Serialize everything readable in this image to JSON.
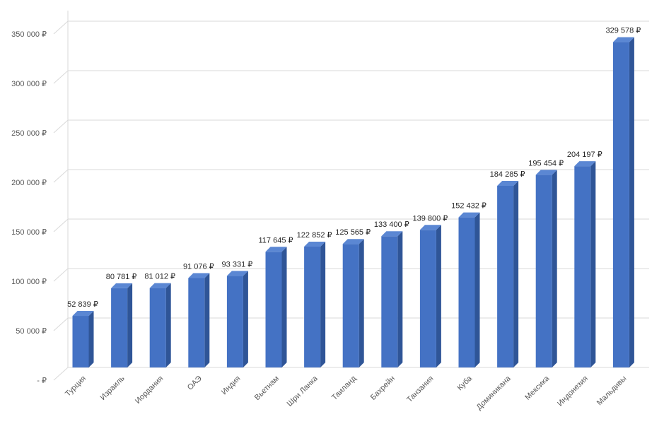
{
  "chart_data": {
    "type": "bar",
    "title": "",
    "xlabel": "",
    "ylabel": "",
    "ylim": [
      0,
      350000
    ],
    "yticks": [
      0,
      50000,
      100000,
      150000,
      200000,
      250000,
      300000,
      350000
    ],
    "ytick_labels": [
      "-  ₽",
      "50 000 ₽",
      "100 000 ₽",
      "150 000 ₽",
      "200 000 ₽",
      "250 000 ₽",
      "300 000 ₽",
      "350 000 ₽"
    ],
    "grid": true,
    "legend": "none",
    "categories": [
      "Турция",
      "Израиль",
      "Иордания",
      "ОАЭ",
      "Индия",
      "Вьетнам",
      "Шри Ланка",
      "Таиланд",
      "Бахрейн",
      "Танзания",
      "Куба",
      "Доминикана",
      "Мексика",
      "Индонезия",
      "Мальдивы"
    ],
    "values": [
      52839,
      80781,
      81012,
      91076,
      93331,
      117645,
      122852,
      125565,
      133400,
      139800,
      152432,
      184285,
      195454,
      204197,
      329578
    ],
    "data_labels": [
      "52 839 ₽",
      "80 781 ₽",
      "81 012 ₽",
      "91 076 ₽",
      "93 331 ₽",
      "117 645 ₽",
      "122 852 ₽",
      "125 565 ₽",
      "133 400 ₽",
      "139 800 ₽",
      "152 432 ₽",
      "184 285 ₽",
      "195 454 ₽",
      "204 197 ₽",
      "329 578 ₽"
    ],
    "colors": {
      "bar_front": "#4472C4",
      "bar_side": "#2F5597",
      "bar_top": "#5B87D3"
    }
  }
}
